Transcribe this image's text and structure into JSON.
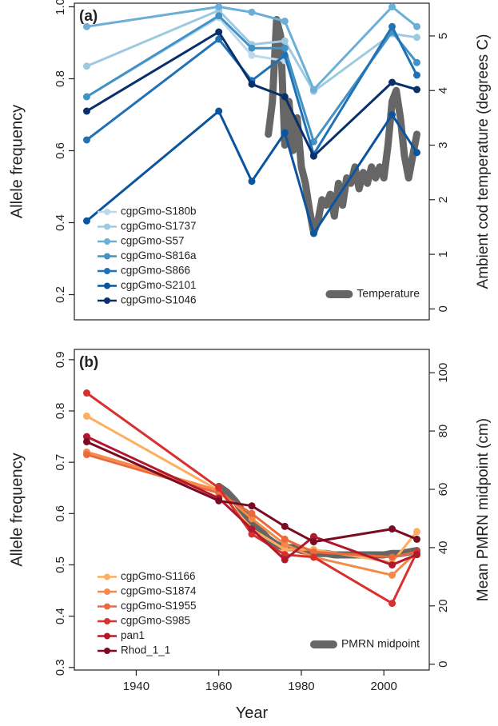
{
  "figure": {
    "x_axis_title": "Year",
    "x_ticks": [
      1940,
      1960,
      1980,
      2000
    ],
    "xlim": [
      1925,
      2011
    ]
  },
  "chart_data": [
    {
      "type": "line",
      "panel_label": "(a)",
      "ylabel": "Allele frequency",
      "ylim": [
        0.13,
        1.01
      ],
      "y_ticks": [
        0.2,
        0.4,
        0.6,
        0.8,
        1.0
      ],
      "y_tick_labels": [
        "0.2",
        "0.4",
        "0.6",
        "0.8",
        "1.0"
      ],
      "y2label": "Ambient cod temperature (degrees C)",
      "y2lim": [
        -0.2,
        5.6
      ],
      "y2_ticks": [
        0,
        1,
        2,
        3,
        4,
        5
      ],
      "legend_position": "bottom-left",
      "series": [
        {
          "name": "cgpGmo-S180b",
          "color": "#bcd8ec",
          "x": [
            1928,
            1960,
            1968,
            1976
          ],
          "y": [
            0.75,
            0.97,
            0.865,
            0.85
          ]
        },
        {
          "name": "cgpGmo-S1737",
          "color": "#9ecae1",
          "x": [
            1928,
            1960,
            1968,
            1976,
            1983,
            2002,
            2008
          ],
          "y": [
            0.835,
            0.99,
            0.895,
            0.905,
            0.765,
            0.925,
            0.915
          ]
        },
        {
          "name": "cgpGmo-S57",
          "color": "#6baed6",
          "x": [
            1928,
            1960,
            1968,
            1976,
            1983,
            2002,
            2008
          ],
          "y": [
            0.945,
            1.0,
            0.985,
            0.96,
            0.77,
            1.0,
            0.945
          ]
        },
        {
          "name": "cgpGmo-S816a",
          "color": "#4292c6",
          "x": [
            1928,
            1960,
            1968,
            1976,
            1983,
            2002,
            2008
          ],
          "y": [
            0.75,
            0.975,
            0.885,
            0.885,
            0.625,
            0.93,
            0.845
          ]
        },
        {
          "name": "cgpGmo-S866",
          "color": "#2171b5",
          "x": [
            1928,
            1960,
            1968,
            1976,
            1983,
            2002,
            2008
          ],
          "y": [
            0.63,
            0.91,
            0.795,
            0.865,
            0.59,
            0.945,
            0.81
          ]
        },
        {
          "name": "cgpGmo-S2101",
          "color": "#0b559f",
          "x": [
            1928,
            1960,
            1968,
            1976,
            1983,
            2002,
            2008
          ],
          "y": [
            0.405,
            0.71,
            0.515,
            0.65,
            0.37,
            0.7,
            0.595
          ]
        },
        {
          "name": "cgpGmo-S1046",
          "color": "#08306b",
          "x": [
            1928,
            1960,
            1968,
            1976,
            1983,
            2002,
            2008
          ],
          "y": [
            0.71,
            0.93,
            0.785,
            0.75,
            0.585,
            0.79,
            0.77
          ]
        }
      ],
      "secondary_series": {
        "name": "Temperature",
        "color": "#666666",
        "x": [
          1972,
          1973,
          1974,
          1975,
          1976,
          1977,
          1978,
          1979,
          1980,
          1981,
          1982,
          1983,
          1984,
          1985,
          1986,
          1987,
          1988,
          1989,
          1990,
          1991,
          1992,
          1993,
          1994,
          1995,
          1996,
          1997,
          1998,
          1999,
          2000,
          2001,
          2002,
          2003,
          2004,
          2005,
          2006,
          2007,
          2008
        ],
        "y": [
          3.2,
          3.8,
          5.3,
          5.0,
          3.0,
          3.8,
          2.9,
          3.5,
          2.6,
          2.3,
          1.8,
          1.4,
          1.6,
          2.0,
          1.9,
          2.1,
          1.7,
          2.3,
          1.9,
          2.4,
          2.3,
          2.6,
          2.2,
          2.5,
          2.3,
          2.6,
          2.4,
          2.6,
          2.4,
          3.0,
          3.8,
          4.0,
          3.5,
          2.8,
          2.4,
          2.8,
          3.2
        ]
      }
    },
    {
      "type": "line",
      "panel_label": "(b)",
      "ylabel": "Allele frequency",
      "ylim": [
        0.295,
        0.92
      ],
      "y_ticks": [
        0.3,
        0.4,
        0.5,
        0.6,
        0.7,
        0.8,
        0.9
      ],
      "y_tick_labels": [
        "0.3",
        "0.4",
        "0.5",
        "0.6",
        "0.7",
        "0.8",
        "0.9"
      ],
      "y2label": "Mean PMRN midpoint (cm)",
      "y2lim": [
        -2,
        108
      ],
      "y2_ticks": [
        0,
        20,
        40,
        60,
        80,
        100
      ],
      "legend_position": "bottom-left",
      "series": [
        {
          "name": "cgpGmo-S1166",
          "color": "#fdae61",
          "x": [
            1928,
            1960,
            1968,
            1976,
            1983,
            2002,
            2008
          ],
          "y": [
            0.79,
            0.645,
            0.57,
            0.53,
            0.53,
            0.505,
            0.565
          ]
        },
        {
          "name": "cgpGmo-S1874",
          "color": "#f4894a",
          "x": [
            1928,
            1960,
            1968,
            1976,
            1983,
            2002,
            2008
          ],
          "y": [
            0.72,
            0.645,
            0.59,
            0.54,
            0.515,
            0.48,
            0.525
          ]
        },
        {
          "name": "cgpGmo-S1955",
          "color": "#ea6a3d",
          "x": [
            1928,
            1960,
            1968,
            1976,
            1983,
            2002,
            2008
          ],
          "y": [
            0.715,
            0.64,
            0.6,
            0.55,
            0.525,
            0.515,
            0.525
          ]
        },
        {
          "name": "cgpGmo-S985",
          "color": "#d7302f",
          "x": [
            1928,
            1960,
            1968,
            1976,
            1983,
            2002,
            2008
          ],
          "y": [
            0.835,
            0.65,
            0.56,
            0.52,
            0.515,
            0.425,
            0.525
          ]
        },
        {
          "name": "pan1",
          "color": "#b2182b",
          "x": [
            1928,
            1960,
            1968,
            1976,
            1983,
            2002,
            2008
          ],
          "y": [
            0.75,
            0.63,
            0.57,
            0.51,
            0.555,
            0.5,
            0.52
          ]
        },
        {
          "name": "Rhod_1_1",
          "color": "#7a0b22",
          "x": [
            1928,
            1960,
            1968,
            1976,
            1983,
            2002,
            2008
          ],
          "y": [
            0.74,
            0.625,
            0.615,
            0.575,
            0.545,
            0.57,
            0.55
          ]
        }
      ],
      "secondary_series": {
        "name": "PMRN midpoint",
        "color": "#666666",
        "x": [
          1960,
          1962,
          1964,
          1966,
          1968,
          1970,
          1972,
          1974,
          1976,
          1978,
          1980,
          1982,
          1984,
          1986,
          1988,
          1990,
          1992,
          1994,
          1996,
          1998,
          2000,
          2002,
          2004,
          2006,
          2008
        ],
        "y": [
          61,
          59,
          56,
          52,
          49,
          46,
          43,
          41,
          40,
          40,
          39,
          38.5,
          38,
          38,
          37.5,
          37.5,
          37.5,
          37.5,
          37.5,
          37.5,
          37.5,
          38,
          38,
          38.5,
          39
        ]
      }
    }
  ]
}
